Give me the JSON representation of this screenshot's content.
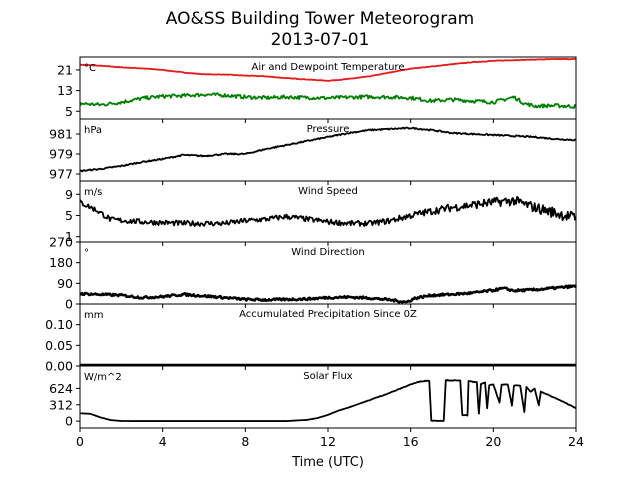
{
  "chart_data": {
    "type": "line",
    "title": "AO&SS Building Tower Meteorogram",
    "subtitle": "2013-07-01",
    "xlabel": "Time (UTC)",
    "xlim": [
      0,
      24
    ],
    "xticks": [
      0,
      4,
      8,
      12,
      16,
      20,
      24
    ],
    "xtick_labels": [
      "0",
      "4",
      "8",
      "12",
      "16",
      "20",
      "24"
    ],
    "panels": [
      {
        "id": "temp",
        "title": "Air and Dewpoint Temperature",
        "unit": "°C",
        "ylim": [
          2,
          26
        ],
        "yticks": [
          21,
          13,
          5
        ],
        "ytick_labels": [
          "21",
          "13",
          "5"
        ],
        "series": [
          {
            "key": "air",
            "color": "#e41a1c",
            "noise": 0.1,
            "points": [
              [
                0,
                23
              ],
              [
                1,
                22.6
              ],
              [
                2,
                22
              ],
              [
                3,
                21.6
              ],
              [
                4,
                21
              ],
              [
                5,
                20
              ],
              [
                6,
                19.3
              ],
              [
                7,
                19.2
              ],
              [
                8,
                18.8
              ],
              [
                9,
                18.5
              ],
              [
                10,
                17.8
              ],
              [
                11,
                17.3
              ],
              [
                12,
                16.8
              ],
              [
                13,
                17.5
              ],
              [
                14,
                18.5
              ],
              [
                15,
                20
              ],
              [
                16,
                21.5
              ],
              [
                17,
                22.3
              ],
              [
                18,
                23.2
              ],
              [
                19,
                24
              ],
              [
                20,
                24.5
              ],
              [
                21,
                24.8
              ],
              [
                22,
                25
              ],
              [
                23,
                25.2
              ],
              [
                24,
                25.2
              ]
            ]
          },
          {
            "key": "dewpoint",
            "color": "#008000",
            "noise": 0.7,
            "points": [
              [
                0,
                8
              ],
              [
                1,
                7.5
              ],
              [
                2,
                8.5
              ],
              [
                3,
                10
              ],
              [
                4,
                10.8
              ],
              [
                5,
                11
              ],
              [
                6,
                11.5
              ],
              [
                7,
                11.2
              ],
              [
                8,
                10.5
              ],
              [
                9,
                10.2
              ],
              [
                10,
                10.5
              ],
              [
                11,
                10.3
              ],
              [
                12,
                10.1
              ],
              [
                13,
                10.4
              ],
              [
                14,
                10.6
              ],
              [
                15,
                10.5
              ],
              [
                16,
                10.2
              ],
              [
                17,
                9
              ],
              [
                18,
                9.5
              ],
              [
                19,
                9
              ],
              [
                20,
                8.5
              ],
              [
                20.5,
                9.5
              ],
              [
                21,
                10.5
              ],
              [
                21.5,
                8
              ],
              [
                22,
                7
              ],
              [
                23,
                7.2
              ],
              [
                24,
                6.8
              ]
            ]
          }
        ]
      },
      {
        "id": "pressure",
        "title": "Pressure",
        "unit": "hPa",
        "ylim": [
          976.3,
          982.5
        ],
        "yticks": [
          981,
          979,
          977
        ],
        "ytick_labels": [
          "981",
          "979",
          "977"
        ],
        "series": [
          {
            "key": "pressure",
            "color": "#000000",
            "noise": 0.07,
            "points": [
              [
                0,
                977.3
              ],
              [
                1,
                977.5
              ],
              [
                2,
                977.8
              ],
              [
                3,
                978.2
              ],
              [
                4,
                978.5
              ],
              [
                5,
                978.9
              ],
              [
                6,
                978.8
              ],
              [
                7,
                979.0
              ],
              [
                8,
                979.0
              ],
              [
                9,
                979.5
              ],
              [
                10,
                979.9
              ],
              [
                11,
                980.3
              ],
              [
                12,
                980.7
              ],
              [
                13,
                981.1
              ],
              [
                14,
                981.4
              ],
              [
                15,
                981.5
              ],
              [
                16,
                981.6
              ],
              [
                17,
                981.4
              ],
              [
                18,
                981.1
              ],
              [
                19,
                981.0
              ],
              [
                20,
                980.9
              ],
              [
                21,
                980.8
              ],
              [
                22,
                980.7
              ],
              [
                23,
                980.5
              ],
              [
                24,
                980.4
              ]
            ]
          }
        ]
      },
      {
        "id": "wind_speed",
        "title": "Wind Speed",
        "unit": "m/s",
        "ylim": [
          0,
          11.5
        ],
        "yticks": [
          9,
          5,
          1
        ],
        "ytick_labels": [
          "9",
          "5",
          "1"
        ],
        "series": [
          {
            "key": "speed",
            "color": "#000000",
            "noise": 0.5,
            "noise_growth": 1.2,
            "points": [
              [
                0,
                7.5
              ],
              [
                0.8,
                6
              ],
              [
                1.5,
                4.2
              ],
              [
                3,
                3.8
              ],
              [
                5,
                3.5
              ],
              [
                7,
                3.5
              ],
              [
                8,
                4
              ],
              [
                9,
                4.3
              ],
              [
                10,
                4.8
              ],
              [
                11,
                4.3
              ],
              [
                12,
                3.8
              ],
              [
                13,
                3.5
              ],
              [
                14,
                3.5
              ],
              [
                15,
                4
              ],
              [
                16,
                5
              ],
              [
                17,
                5.8
              ],
              [
                18,
                6.5
              ],
              [
                19,
                7
              ],
              [
                20,
                7.5
              ],
              [
                21,
                7.8
              ],
              [
                22,
                6.5
              ],
              [
                23,
                5.5
              ],
              [
                24,
                4.5
              ]
            ]
          }
        ]
      },
      {
        "id": "wind_dir",
        "title": "Wind Direction",
        "unit": "°",
        "ylim": [
          0,
          270
        ],
        "yticks": [
          270,
          180,
          90,
          0
        ],
        "ytick_labels": [
          "270",
          "180",
          "90",
          "0"
        ],
        "series": [
          {
            "key": "direction",
            "color": "#000000",
            "noise": 5,
            "lw": 2.6,
            "points": [
              [
                0,
                45
              ],
              [
                2,
                38
              ],
              [
                3,
                28
              ],
              [
                4,
                32
              ],
              [
                5,
                42
              ],
              [
                6,
                35
              ],
              [
                7,
                28
              ],
              [
                8,
                20
              ],
              [
                9,
                18
              ],
              [
                10,
                20
              ],
              [
                11,
                22
              ],
              [
                12,
                28
              ],
              [
                13,
                30
              ],
              [
                14,
                26
              ],
              [
                15,
                18
              ],
              [
                15.8,
                8
              ],
              [
                16.2,
                25
              ],
              [
                17,
                38
              ],
              [
                18,
                42
              ],
              [
                19,
                48
              ],
              [
                20,
                60
              ],
              [
                20.5,
                68
              ],
              [
                21,
                58
              ],
              [
                22,
                62
              ],
              [
                23,
                70
              ],
              [
                24,
                78
              ]
            ]
          }
        ]
      },
      {
        "id": "precip",
        "title": "Accumulated Precipitation Since 0Z",
        "unit": "mm",
        "ylim": [
          0,
          0.15
        ],
        "yticks": [
          0.1,
          0.05,
          0.0
        ],
        "ytick_labels": [
          "0.10",
          "0.05",
          "0.00"
        ],
        "series": [
          {
            "key": "precip",
            "color": "#000000",
            "noise": 0,
            "lw": 2.4,
            "points": [
              [
                0,
                0
              ],
              [
                24,
                0
              ]
            ]
          }
        ]
      },
      {
        "id": "solar",
        "title": "Solar Flux",
        "unit": "W/m^2",
        "ylim": [
          -130,
          1050
        ],
        "yticks": [
          624,
          312,
          0
        ],
        "ytick_labels": [
          "624",
          "312",
          "0"
        ],
        "series": [
          {
            "key": "solar",
            "color": "#000000",
            "noise": 6,
            "noise_start": 14,
            "points": [
              [
                0,
                150
              ],
              [
                0.5,
                140
              ],
              [
                1,
                70
              ],
              [
                1.5,
                20
              ],
              [
                2,
                3
              ],
              [
                3,
                2
              ],
              [
                6,
                2
              ],
              [
                10,
                2
              ],
              [
                11,
                25
              ],
              [
                11.5,
                60
              ],
              [
                12,
                120
              ],
              [
                12.5,
                200
              ],
              [
                13,
                260
              ],
              [
                13.5,
                330
              ],
              [
                14,
                400
              ],
              [
                14.5,
                470
              ],
              [
                15,
                540
              ],
              [
                15.5,
                620
              ],
              [
                16,
                700
              ],
              [
                16.5,
                760
              ],
              [
                16.9,
                770
              ],
              [
                17.0,
                10
              ],
              [
                17.6,
                8
              ],
              [
                17.7,
                780
              ],
              [
                18.4,
                770
              ],
              [
                18.5,
                120
              ],
              [
                18.75,
                110
              ],
              [
                18.8,
                760
              ],
              [
                19.2,
                740
              ],
              [
                19.3,
                150
              ],
              [
                19.4,
                700
              ],
              [
                19.6,
                740
              ],
              [
                19.7,
                250
              ],
              [
                19.8,
                680
              ],
              [
                20,
                700
              ],
              [
                20.3,
                350
              ],
              [
                20.4,
                690
              ],
              [
                20.7,
                700
              ],
              [
                20.9,
                300
              ],
              [
                21.0,
                680
              ],
              [
                21.3,
                680
              ],
              [
                21.5,
                180
              ],
              [
                21.6,
                650
              ],
              [
                21.8,
                560
              ],
              [
                22,
                620
              ],
              [
                22.2,
                300
              ],
              [
                22.3,
                560
              ],
              [
                23,
                440
              ],
              [
                24,
                250
              ]
            ]
          }
        ]
      }
    ]
  }
}
